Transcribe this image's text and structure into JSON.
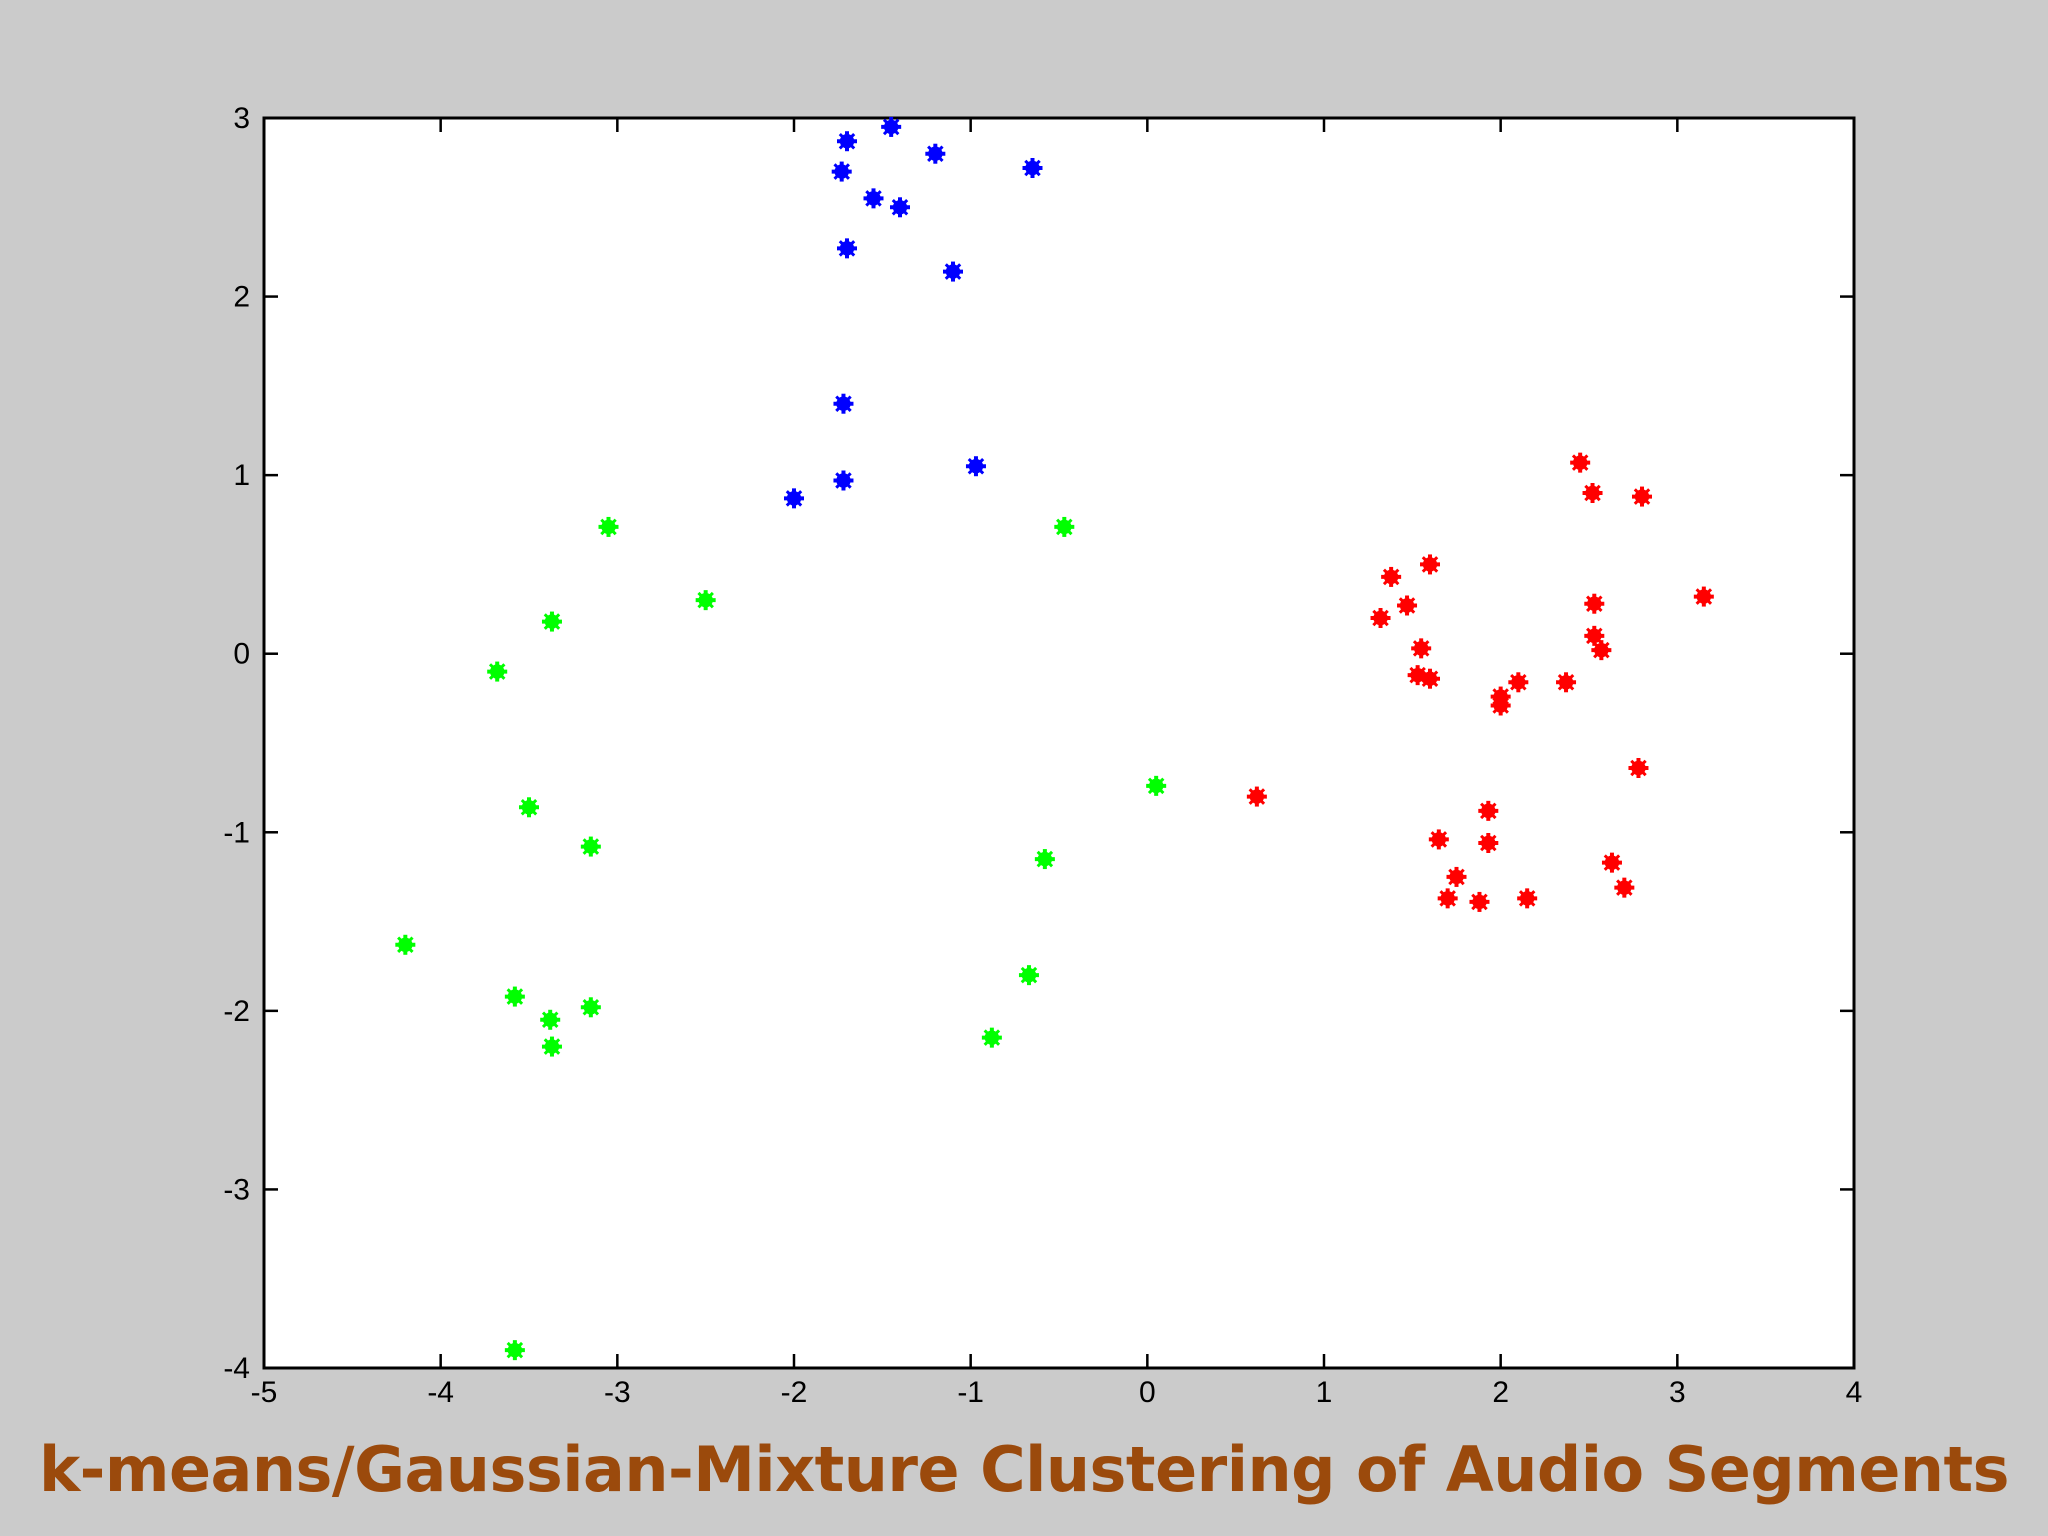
{
  "slide": {
    "title": "k-means/Gaussian-Mixture Clustering of Audio Segments",
    "background_color": "#cbcbcb",
    "title_color": "#9b4a0c"
  },
  "chart_data": {
    "type": "scatter",
    "title": "",
    "xlabel": "",
    "ylabel": "",
    "xlim": [
      -5,
      4
    ],
    "ylim": [
      -4,
      3
    ],
    "x_ticks": [
      -5,
      -4,
      -3,
      -2,
      -1,
      0,
      1,
      2,
      3,
      4
    ],
    "y_ticks": [
      -4,
      -3,
      -2,
      -1,
      0,
      1,
      2,
      3
    ],
    "grid": false,
    "legend": "none",
    "marker": "asterisk",
    "series": [
      {
        "color": "#0000ff",
        "points": [
          [
            -1.45,
            2.95
          ],
          [
            -1.7,
            2.87
          ],
          [
            -1.2,
            2.8
          ],
          [
            -1.73,
            2.7
          ],
          [
            -0.65,
            2.72
          ],
          [
            -1.55,
            2.55
          ],
          [
            -1.4,
            2.5
          ],
          [
            -1.7,
            2.27
          ],
          [
            -1.1,
            2.14
          ],
          [
            -1.72,
            1.4
          ],
          [
            -0.97,
            1.05
          ],
          [
            -1.72,
            0.97
          ],
          [
            -2.0,
            0.87
          ]
        ]
      },
      {
        "color": "#00ff00",
        "points": [
          [
            -3.05,
            0.71
          ],
          [
            -0.47,
            0.71
          ],
          [
            -2.5,
            0.3
          ],
          [
            -3.37,
            0.18
          ],
          [
            -3.68,
            -0.1
          ],
          [
            -3.5,
            -0.86
          ],
          [
            -3.15,
            -1.08
          ],
          [
            0.05,
            -0.74
          ],
          [
            -0.58,
            -1.15
          ],
          [
            -4.2,
            -1.63
          ],
          [
            -0.67,
            -1.8
          ],
          [
            -3.58,
            -1.92
          ],
          [
            -3.38,
            -2.05
          ],
          [
            -3.15,
            -1.98
          ],
          [
            -3.37,
            -2.2
          ],
          [
            -0.88,
            -2.15
          ],
          [
            -3.58,
            -3.9
          ]
        ]
      },
      {
        "color": "#ff0000",
        "points": [
          [
            2.45,
            1.07
          ],
          [
            2.52,
            0.9
          ],
          [
            2.8,
            0.88
          ],
          [
            1.6,
            0.5
          ],
          [
            1.38,
            0.43
          ],
          [
            1.47,
            0.27
          ],
          [
            1.32,
            0.2
          ],
          [
            3.15,
            0.32
          ],
          [
            2.53,
            0.28
          ],
          [
            1.55,
            0.03
          ],
          [
            2.53,
            0.1
          ],
          [
            2.57,
            0.02
          ],
          [
            1.53,
            -0.12
          ],
          [
            1.6,
            -0.14
          ],
          [
            2.1,
            -0.16
          ],
          [
            2.37,
            -0.16
          ],
          [
            2.0,
            -0.24
          ],
          [
            2.0,
            -0.29
          ],
          [
            2.78,
            -0.64
          ],
          [
            0.62,
            -0.8
          ],
          [
            1.93,
            -0.88
          ],
          [
            1.65,
            -1.04
          ],
          [
            1.93,
            -1.06
          ],
          [
            2.63,
            -1.17
          ],
          [
            1.75,
            -1.25
          ],
          [
            2.7,
            -1.31
          ],
          [
            1.7,
            -1.37
          ],
          [
            1.88,
            -1.39
          ],
          [
            2.15,
            -1.37
          ]
        ]
      }
    ]
  }
}
